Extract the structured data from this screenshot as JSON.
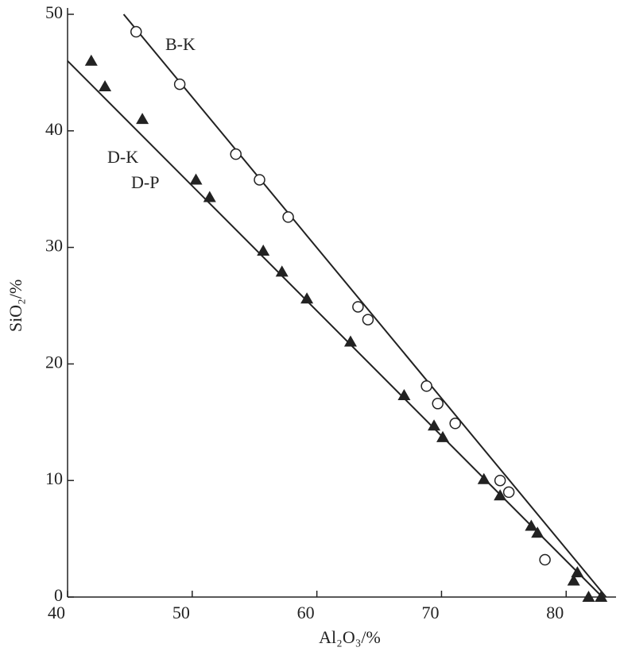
{
  "chart_data": {
    "type": "scatter",
    "x_label": "Al₂O₃/%",
    "y_label": "SiO₂/%",
    "xlim": [
      40,
      84
    ],
    "ylim": [
      0,
      50
    ],
    "xticks": [
      40,
      50,
      60,
      70,
      80
    ],
    "yticks": [
      0,
      10,
      20,
      30,
      40,
      50
    ],
    "grid": false,
    "color": "#222222",
    "annotations": [
      "B-K",
      "D-K",
      "D-P"
    ],
    "series": [
      {
        "marker": "circle",
        "x": [
          45.5,
          49.0,
          53.5,
          55.4,
          57.7,
          63.3,
          64.1,
          68.8,
          69.7,
          71.1,
          74.7,
          75.4,
          78.3
        ],
        "values": [
          48.5,
          44.0,
          38.0,
          35.8,
          32.6,
          24.9,
          23.8,
          18.1,
          16.6,
          14.9,
          10.0,
          9.0,
          3.2
        ]
      },
      {
        "marker": "triangle",
        "x": [
          41.9,
          43.0,
          46.0,
          50.3,
          51.4,
          55.7,
          57.2,
          59.2,
          62.7,
          67.0,
          69.4,
          70.1,
          73.4,
          74.7,
          77.2,
          77.7,
          80.9,
          80.6,
          81.8,
          82.8
        ],
        "values": [
          46.0,
          43.8,
          41.0,
          35.8,
          34.3,
          29.7,
          27.9,
          25.6,
          21.9,
          17.3,
          14.7,
          13.7,
          10.1,
          8.7,
          6.1,
          5.5,
          2.1,
          1.4,
          0,
          0
        ]
      }
    ],
    "fit_lines": [
      {
        "x": [
          44.5,
          83.2
        ],
        "values": [
          50,
          0
        ]
      },
      {
        "x": [
          40,
          82.9
        ],
        "values": [
          46,
          0
        ]
      }
    ]
  }
}
